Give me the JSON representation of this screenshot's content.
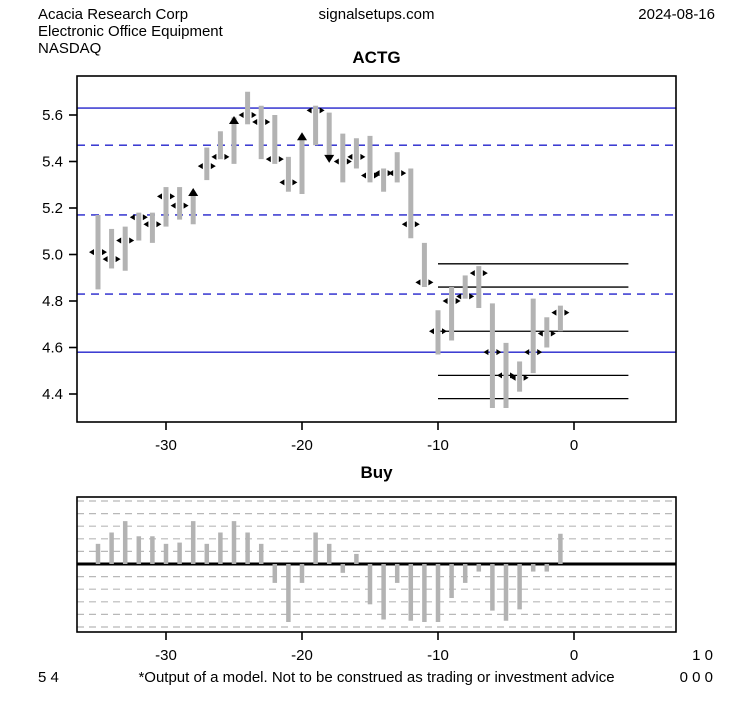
{
  "header": {
    "company": "Acacia Research Corp",
    "industry": "Electronic Office Equipment",
    "exchange": "NASDAQ",
    "site": "signalsetups.com",
    "date": "2024-08-16"
  },
  "footer": {
    "left_numbers": "5 4",
    "disclaimer": "*Output of a model. Not to be construed as trading or investment advice",
    "right_numbers_top": "1 0",
    "right_numbers_bottom": "0 0 0"
  },
  "colors": {
    "bar_gray": "#b3b3b3",
    "blue_line": "#2222cc",
    "grid_gray": "#b8b8b8",
    "marker_black": "#000000",
    "frame_black": "#000000"
  },
  "chart_data": [
    {
      "type": "hlc-bar",
      "title": "ACTG",
      "xlabel": "",
      "ylabel": "",
      "x_ticks": [
        -30,
        -20,
        -10,
        0
      ],
      "y_ticks": [
        5.6,
        5.4,
        5.2,
        5.0,
        4.8,
        4.6,
        4.4
      ],
      "x_range": [
        -36.5,
        7.5
      ],
      "y_range": [
        4.29,
        5.77
      ],
      "grid": "off",
      "blue_levels": [
        {
          "price": 5.63,
          "style": "solid"
        },
        {
          "price": 5.47,
          "style": "dashed"
        },
        {
          "price": 5.17,
          "style": "dashed"
        },
        {
          "price": 4.83,
          "style": "dashed"
        },
        {
          "price": 4.58,
          "style": "solid"
        }
      ],
      "black_levels": [
        {
          "price": 4.96,
          "x_from": -10,
          "x_to": 4
        },
        {
          "price": 4.86,
          "x_from": -10,
          "x_to": 4
        },
        {
          "price": 4.67,
          "x_from": -10,
          "x_to": 4
        },
        {
          "price": 4.48,
          "x_from": -10,
          "x_to": 4
        },
        {
          "price": 4.38,
          "x_from": -10,
          "x_to": 4
        }
      ],
      "bars": [
        {
          "x": -35,
          "high": 5.17,
          "low": 4.85,
          "close": 5.01,
          "marker": "lr"
        },
        {
          "x": -34,
          "high": 5.11,
          "low": 4.94,
          "close": 4.98,
          "marker": "lr"
        },
        {
          "x": -33,
          "high": 5.12,
          "low": 4.93,
          "close": 5.06,
          "marker": "lr"
        },
        {
          "x": -32,
          "high": 5.18,
          "low": 5.06,
          "close": 5.16,
          "marker": "lr"
        },
        {
          "x": -31,
          "high": 5.18,
          "low": 5.05,
          "close": 5.13,
          "marker": "lr"
        },
        {
          "x": -30,
          "high": 5.29,
          "low": 5.12,
          "close": 5.25,
          "marker": "lr"
        },
        {
          "x": -29,
          "high": 5.29,
          "low": 5.15,
          "close": 5.21,
          "marker": "lr"
        },
        {
          "x": -28,
          "high": 5.27,
          "low": 5.13,
          "close": 5.26,
          "marker": "up"
        },
        {
          "x": -27,
          "high": 5.46,
          "low": 5.32,
          "close": 5.38,
          "marker": "lr"
        },
        {
          "x": -26,
          "high": 5.53,
          "low": 5.41,
          "close": 5.42,
          "marker": "lr"
        },
        {
          "x": -25,
          "high": 5.59,
          "low": 5.39,
          "close": 5.57,
          "marker": "up"
        },
        {
          "x": -24,
          "high": 5.7,
          "low": 5.56,
          "close": 5.6,
          "marker": "lr"
        },
        {
          "x": -23,
          "high": 5.64,
          "low": 5.41,
          "close": 5.57,
          "marker": "lr"
        },
        {
          "x": -22,
          "high": 5.6,
          "low": 5.39,
          "close": 5.41,
          "marker": "lr"
        },
        {
          "x": -21,
          "high": 5.42,
          "low": 5.27,
          "close": 5.31,
          "marker": "lr"
        },
        {
          "x": -20,
          "high": 5.51,
          "low": 5.26,
          "close": 5.5,
          "marker": "up"
        },
        {
          "x": -19,
          "high": 5.64,
          "low": 5.47,
          "close": 5.62,
          "marker": "lr"
        },
        {
          "x": -18,
          "high": 5.61,
          "low": 5.42,
          "close": 5.42,
          "marker": "down"
        },
        {
          "x": -17,
          "high": 5.52,
          "low": 5.31,
          "close": 5.4,
          "marker": "lr"
        },
        {
          "x": -16,
          "high": 5.5,
          "low": 5.37,
          "close": 5.42,
          "marker": "lr"
        },
        {
          "x": -15,
          "high": 5.51,
          "low": 5.31,
          "close": 5.34,
          "marker": "lr"
        },
        {
          "x": -14,
          "high": 5.37,
          "low": 5.27,
          "close": 5.35,
          "marker": "lr"
        },
        {
          "x": -13,
          "high": 5.44,
          "low": 5.31,
          "close": 5.35,
          "marker": "lr"
        },
        {
          "x": -12,
          "high": 5.37,
          "low": 5.07,
          "close": 5.13,
          "marker": "lr"
        },
        {
          "x": -11,
          "high": 5.05,
          "low": 4.86,
          "close": 4.88,
          "marker": "lr"
        },
        {
          "x": -10,
          "high": 4.76,
          "low": 4.57,
          "close": 4.67,
          "marker": "lr"
        },
        {
          "x": -9,
          "high": 4.86,
          "low": 4.63,
          "close": 4.8,
          "marker": "lr"
        },
        {
          "x": -8,
          "high": 4.91,
          "low": 4.81,
          "close": 4.82,
          "marker": "lr"
        },
        {
          "x": -7,
          "high": 4.95,
          "low": 4.77,
          "close": 4.92,
          "marker": "lr"
        },
        {
          "x": -6,
          "high": 4.79,
          "low": 4.34,
          "close": 4.58,
          "marker": "lr"
        },
        {
          "x": -5,
          "high": 4.62,
          "low": 4.34,
          "close": 4.48,
          "marker": "lr"
        },
        {
          "x": -4,
          "high": 4.54,
          "low": 4.41,
          "close": 4.47,
          "marker": "lr"
        },
        {
          "x": -3,
          "high": 4.81,
          "low": 4.49,
          "close": 4.58,
          "marker": "lr"
        },
        {
          "x": -2,
          "high": 4.73,
          "low": 4.6,
          "close": 4.66,
          "marker": "lr"
        },
        {
          "x": -1,
          "high": 4.78,
          "low": 4.67,
          "close": 4.75,
          "marker": "lr"
        }
      ]
    },
    {
      "type": "bar",
      "title": "Buy",
      "xlabel": "",
      "ylabel": "",
      "x_ticks": [
        -30,
        -20,
        -10,
        0
      ],
      "x_range": [
        -36.5,
        7.5
      ],
      "ylim": [
        -5.4,
        5.3
      ],
      "grid": "dashed-horizontal",
      "x": [
        -35,
        -34,
        -33,
        -32,
        -31,
        -30,
        -29,
        -28,
        -27,
        -26,
        -25,
        -24,
        -23,
        -22,
        -21,
        -20,
        -19,
        -18,
        -17,
        -16,
        -15,
        -14,
        -13,
        -12,
        -11,
        -10,
        -9,
        -8,
        -7,
        -6,
        -5,
        -4,
        -3,
        -2,
        -1
      ],
      "values": [
        1.6,
        2.5,
        3.4,
        2.2,
        2.2,
        1.6,
        1.7,
        3.4,
        1.6,
        2.5,
        3.4,
        2.5,
        1.6,
        -1.5,
        -4.6,
        -1.5,
        2.5,
        1.6,
        -0.7,
        0.8,
        -3.2,
        -4.4,
        -1.5,
        -4.5,
        -4.6,
        -4.6,
        -2.7,
        -1.5,
        -0.6,
        -3.7,
        -4.5,
        -3.6,
        -0.6,
        -0.6,
        2.4
      ]
    }
  ]
}
